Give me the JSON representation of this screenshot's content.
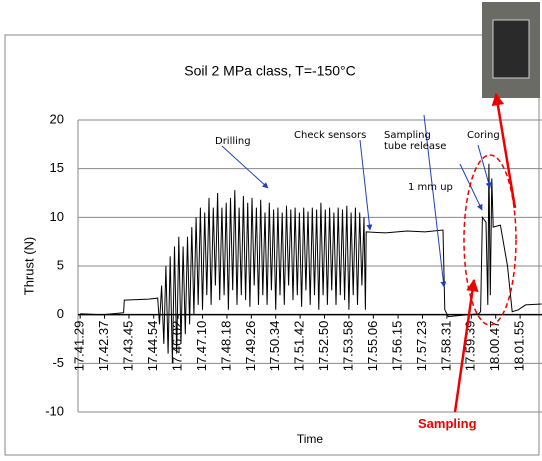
{
  "chart_data": {
    "type": "line",
    "title": "Soil 2 MPa class, T=-150°C",
    "x_label": "Time",
    "y_label": "Thrust (N)",
    "xlim": [
      63683,
      64976
    ],
    "ylim": [
      -10,
      20
    ],
    "yticks": [
      -10,
      -5,
      0,
      5,
      10,
      15,
      20
    ],
    "grid": true,
    "xticks": [
      {
        "value": 63689,
        "label": "17.41.29"
      },
      {
        "value": 63757,
        "label": "17.42.37"
      },
      {
        "value": 63825,
        "label": "17.43.45"
      },
      {
        "value": 63894,
        "label": "17.44.54"
      },
      {
        "value": 63962,
        "label": "17.46.02"
      },
      {
        "value": 64030,
        "label": "17.47.10"
      },
      {
        "value": 64098,
        "label": "17.48.18"
      },
      {
        "value": 64166,
        "label": "17.49.26"
      },
      {
        "value": 64234,
        "label": "17.50.34"
      },
      {
        "value": 64302,
        "label": "17.51.42"
      },
      {
        "value": 64370,
        "label": "17.52.50"
      },
      {
        "value": 64438,
        "label": "17.53.58"
      },
      {
        "value": 64506,
        "label": "17.55.06"
      },
      {
        "value": 64575,
        "label": "17.56.15"
      },
      {
        "value": 64643,
        "label": "17.57.23"
      },
      {
        "value": 64711,
        "label": "17.58.31"
      },
      {
        "value": 64779,
        "label": "17.59.39"
      },
      {
        "value": 64847,
        "label": "18.00.47"
      },
      {
        "value": 64915,
        "label": "18.01.55"
      }
    ],
    "color": "#000000",
    "x": [
      63689,
      63750,
      63810,
      63812,
      63880,
      63905,
      63910,
      63916,
      63922,
      63928,
      63934,
      63940,
      63946,
      63952,
      63958,
      63964,
      63970,
      63976,
      63982,
      63988,
      63994,
      64000,
      64006,
      64012,
      64018,
      64024,
      64030,
      64036,
      64042,
      64048,
      64054,
      64060,
      64066,
      64072,
      64078,
      64084,
      64090,
      64096,
      64102,
      64108,
      64114,
      64120,
      64126,
      64132,
      64138,
      64144,
      64150,
      64156,
      64162,
      64168,
      64174,
      64180,
      64186,
      64192,
      64198,
      64204,
      64210,
      64216,
      64222,
      64228,
      64234,
      64240,
      64246,
      64252,
      64258,
      64264,
      64270,
      64276,
      64282,
      64288,
      64294,
      64300,
      64306,
      64312,
      64318,
      64324,
      64330,
      64336,
      64342,
      64348,
      64354,
      64360,
      64366,
      64372,
      64378,
      64384,
      64390,
      64396,
      64402,
      64408,
      64414,
      64420,
      64426,
      64432,
      64438,
      64444,
      64450,
      64456,
      64462,
      64468,
      64474,
      64480,
      64484,
      64486,
      64540,
      64600,
      64650,
      64700,
      64705,
      64715,
      64800,
      64805,
      64810,
      64820,
      64825,
      64828,
      64832,
      64836,
      64840,
      64860,
      64880,
      64893,
      64910,
      64930,
      64975
    ],
    "values": [
      0.1,
      0,
      0.2,
      1.5,
      1.6,
      1.7,
      -1,
      3,
      -3,
      5,
      -4,
      6,
      -5,
      7,
      -4,
      8,
      -3,
      7,
      -2,
      8,
      -1,
      9,
      0,
      10,
      1,
      11,
      0.5,
      10.5,
      2,
      12,
      1,
      11,
      3,
      12.5,
      1.5,
      11,
      2,
      11.5,
      0.5,
      12,
      2.5,
      12.8,
      1,
      11,
      2,
      12.2,
      1.5,
      11.5,
      0.8,
      12,
      3,
      11,
      1,
      11.8,
      2,
      10.5,
      1,
      11.5,
      2.5,
      10.8,
      0.5,
      11,
      2,
      10.5,
      1,
      11.2,
      3,
      10.8,
      1.5,
      11,
      2,
      10.5,
      0.8,
      11,
      2.5,
      10.6,
      1,
      11,
      2,
      10.8,
      0.5,
      11.5,
      2,
      10.8,
      1,
      11,
      2.5,
      10.5,
      1,
      11,
      2,
      10.8,
      1.5,
      11.2,
      0.5,
      10.5,
      2,
      11,
      1,
      10.5,
      3,
      10,
      0.5,
      8.5,
      8.4,
      8.6,
      8.5,
      8.7,
      0.5,
      -0.2,
      0.1,
      0.3,
      10,
      9.5,
      1,
      15.5,
      2,
      14,
      9,
      9.2,
      5,
      0.3,
      0.5,
      1,
      1.1
    ],
    "annotations": [
      "Drilling",
      "Check sensors",
      "Sampling tube release",
      "Coring",
      "1 mm up",
      "Sampling"
    ]
  }
}
